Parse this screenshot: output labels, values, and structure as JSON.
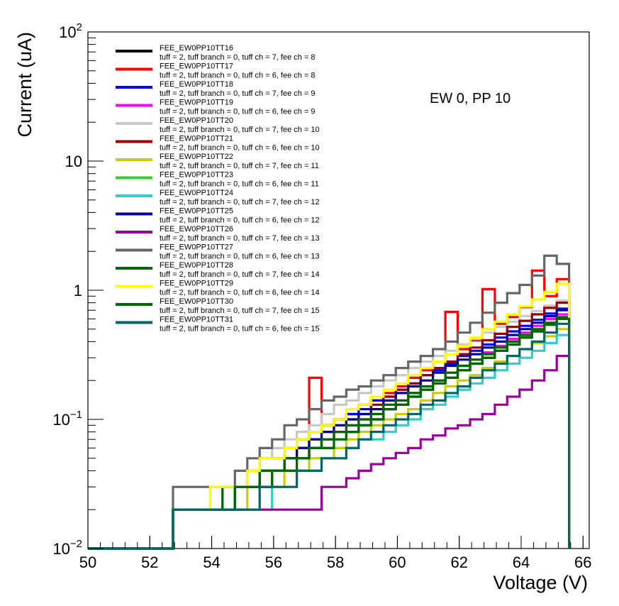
{
  "chart_data": {
    "type": "line",
    "style": "step-histogram",
    "xlabel": "Voltage (V)",
    "ylabel": "Current (uA)",
    "xlim": [
      50,
      66.2
    ],
    "ylim": [
      0.01,
      100
    ],
    "yscale": "log",
    "grid": false,
    "legend_position": "top-left",
    "annotation": "EW 0, PP 10",
    "x_ticks": [
      50,
      52,
      54,
      56,
      58,
      60,
      62,
      64,
      66
    ],
    "y_ticks": [
      {
        "value": 0.01,
        "base": "10",
        "exp": "−2"
      },
      {
        "value": 0.1,
        "base": "10",
        "exp": "−1"
      },
      {
        "value": 1,
        "base": "1",
        "exp": ""
      },
      {
        "value": 10,
        "base": "10",
        "exp": ""
      },
      {
        "value": 100,
        "base": "10",
        "exp": "2"
      }
    ],
    "bin_edges": [
      50.0,
      52.75,
      53.15,
      53.55,
      53.95,
      54.35,
      54.75,
      55.15,
      55.55,
      55.95,
      56.35,
      56.75,
      57.15,
      57.55,
      57.95,
      58.35,
      58.75,
      59.15,
      59.55,
      59.95,
      60.35,
      60.75,
      61.15,
      61.55,
      61.95,
      62.35,
      62.75,
      63.15,
      63.55,
      63.95,
      64.35,
      64.75,
      65.15,
      65.55
    ],
    "series": [
      {
        "name": "FEE_EW0PP10TT16",
        "desc": "tuff = 2, tuff branch = 0, tuff ch = 7, fee ch = 8",
        "color": "#000000",
        "values": [
          0.01,
          0.02,
          0.02,
          0.02,
          0.02,
          0.02,
          0.03,
          0.03,
          0.03,
          0.04,
          0.05,
          0.05,
          0.06,
          0.07,
          0.08,
          0.08,
          0.09,
          0.1,
          0.12,
          0.13,
          0.15,
          0.17,
          0.19,
          0.21,
          0.24,
          0.27,
          0.3,
          0.34,
          0.38,
          0.43,
          0.48,
          0.55,
          0.6
        ]
      },
      {
        "name": "FEE_EW0PP10TT17",
        "desc": "tuff = 2, tuff branch = 0, tuff ch = 6, fee ch = 8",
        "color": "#ff0000",
        "values": [
          0.01,
          0.02,
          0.02,
          0.02,
          0.02,
          0.02,
          0.03,
          0.03,
          0.03,
          0.04,
          0.05,
          0.06,
          0.21,
          0.09,
          0.1,
          0.11,
          0.13,
          0.14,
          0.16,
          0.18,
          0.21,
          0.24,
          0.28,
          0.68,
          0.35,
          0.41,
          1.02,
          0.55,
          0.62,
          0.74,
          1.42,
          0.9,
          1.22
        ]
      },
      {
        "name": "FEE_EW0PP10TT18",
        "desc": "tuff = 2, tuff branch = 0, tuff ch = 7, fee ch = 9",
        "color": "#0000ff",
        "values": [
          0.01,
          0.02,
          0.02,
          0.02,
          0.02,
          0.03,
          0.03,
          0.04,
          0.05,
          0.05,
          0.06,
          0.07,
          0.08,
          0.09,
          0.1,
          0.11,
          0.12,
          0.14,
          0.15,
          0.17,
          0.19,
          0.22,
          0.24,
          0.27,
          0.31,
          0.34,
          0.38,
          0.43,
          0.48,
          0.53,
          0.59,
          0.66,
          0.72
        ]
      },
      {
        "name": "FEE_EW0PP10TT19",
        "desc": "tuff = 2, tuff branch = 0, tuff ch = 6, fee ch = 9",
        "color": "#ff00ff",
        "values": [
          0.01,
          0.02,
          0.02,
          0.02,
          0.02,
          0.02,
          0.03,
          0.03,
          0.04,
          0.04,
          0.05,
          0.05,
          0.06,
          0.07,
          0.08,
          0.09,
          0.1,
          0.11,
          0.12,
          0.14,
          0.16,
          0.18,
          0.2,
          0.23,
          0.26,
          0.29,
          0.33,
          0.37,
          0.42,
          0.47,
          0.53,
          0.6,
          0.65
        ]
      },
      {
        "name": "FEE_EW0PP10TT20",
        "desc": "tuff = 2, tuff branch = 0, tuff ch = 7, fee ch = 10",
        "color": "#c8c8c8",
        "values": [
          0.01,
          0.02,
          0.02,
          0.02,
          0.02,
          0.03,
          0.03,
          0.04,
          0.05,
          0.06,
          0.07,
          0.08,
          0.09,
          0.11,
          0.13,
          0.14,
          0.16,
          0.18,
          0.2,
          0.22,
          0.25,
          0.28,
          0.31,
          0.34,
          0.38,
          0.42,
          0.47,
          0.52,
          0.57,
          0.63,
          0.69,
          0.76,
          0.83
        ]
      },
      {
        "name": "FEE_EW0PP10TT21",
        "desc": "tuff = 2, tuff branch = 0, tuff ch = 6, fee ch = 10",
        "color": "#990000",
        "values": [
          0.01,
          0.02,
          0.02,
          0.02,
          0.02,
          0.02,
          0.03,
          0.03,
          0.04,
          0.04,
          0.05,
          0.06,
          0.07,
          0.08,
          0.09,
          0.1,
          0.11,
          0.13,
          0.15,
          0.17,
          0.19,
          0.22,
          0.25,
          0.28,
          0.32,
          0.36,
          0.41,
          0.46,
          0.52,
          0.58,
          0.65,
          0.73,
          0.8
        ]
      },
      {
        "name": "FEE_EW0PP10TT22",
        "desc": "tuff = 2, tuff branch = 0, tuff ch = 7, fee ch = 11",
        "color": "#cccc00",
        "values": [
          0.01,
          0.02,
          0.02,
          0.02,
          0.02,
          0.02,
          0.02,
          0.03,
          0.03,
          0.03,
          0.04,
          0.04,
          0.05,
          0.05,
          0.06,
          0.07,
          0.08,
          0.09,
          0.1,
          0.11,
          0.12,
          0.14,
          0.16,
          0.18,
          0.2,
          0.22,
          0.25,
          0.28,
          0.31,
          0.35,
          0.39,
          0.44,
          0.5
        ]
      },
      {
        "name": "FEE_EW0PP10TT23",
        "desc": "tuff = 2, tuff branch = 0, tuff ch = 6, fee ch = 11",
        "color": "#33cc33",
        "values": [
          0.01,
          0.02,
          0.02,
          0.02,
          0.02,
          0.02,
          0.03,
          0.03,
          0.03,
          0.04,
          0.04,
          0.05,
          0.06,
          0.06,
          0.07,
          0.08,
          0.09,
          0.1,
          0.12,
          0.13,
          0.15,
          0.17,
          0.19,
          0.21,
          0.24,
          0.27,
          0.3,
          0.34,
          0.38,
          0.43,
          0.48,
          0.54,
          0.6
        ]
      },
      {
        "name": "FEE_EW0PP10TT24",
        "desc": "tuff = 2, tuff branch = 0, tuff ch = 7, fee ch = 12",
        "color": "#33cccc",
        "values": [
          0.01,
          0.02,
          0.02,
          0.02,
          0.02,
          0.02,
          0.02,
          0.02,
          0.02,
          0.03,
          0.03,
          0.04,
          0.04,
          0.05,
          0.05,
          0.06,
          0.07,
          0.07,
          0.08,
          0.09,
          0.1,
          0.12,
          0.13,
          0.15,
          0.17,
          0.19,
          0.21,
          0.24,
          0.27,
          0.3,
          0.34,
          0.39,
          0.45
        ]
      },
      {
        "name": "FEE_EW0PP10TT25",
        "desc": "tuff = 2, tuff branch = 0, tuff ch = 6, fee ch = 12",
        "color": "#000099",
        "values": [
          0.01,
          0.02,
          0.02,
          0.02,
          0.02,
          0.02,
          0.03,
          0.03,
          0.04,
          0.04,
          0.05,
          0.06,
          0.07,
          0.08,
          0.09,
          0.1,
          0.11,
          0.12,
          0.14,
          0.16,
          0.18,
          0.2,
          0.23,
          0.26,
          0.29,
          0.32,
          0.36,
          0.4,
          0.45,
          0.5,
          0.56,
          0.63,
          0.7
        ]
      },
      {
        "name": "FEE_EW0PP10TT26",
        "desc": "tuff = 2, tuff branch = 0, tuff ch = 7, fee ch = 13",
        "color": "#990099",
        "values": [
          0.01,
          0.02,
          0.02,
          0.02,
          0.02,
          0.02,
          0.02,
          0.02,
          0.02,
          0.02,
          0.02,
          0.02,
          0.02,
          0.03,
          0.03,
          0.035,
          0.04,
          0.045,
          0.05,
          0.055,
          0.06,
          0.07,
          0.075,
          0.085,
          0.09,
          0.1,
          0.11,
          0.13,
          0.15,
          0.17,
          0.2,
          0.24,
          0.31
        ]
      },
      {
        "name": "FEE_EW0PP10TT27",
        "desc": "tuff = 2, tuff branch = 0, tuff ch = 6, fee ch = 13",
        "color": "#666666",
        "values": [
          0.01,
          0.03,
          0.03,
          0.03,
          0.03,
          0.03,
          0.04,
          0.05,
          0.06,
          0.07,
          0.09,
          0.1,
          0.12,
          0.14,
          0.15,
          0.17,
          0.18,
          0.2,
          0.22,
          0.25,
          0.28,
          0.31,
          0.35,
          0.4,
          0.47,
          0.56,
          0.67,
          0.8,
          0.95,
          1.1,
          1.3,
          1.85,
          1.6
        ]
      },
      {
        "name": "FEE_EW0PP10TT28",
        "desc": "tuff = 2, tuff branch = 0, tuff ch = 7, fee ch = 14",
        "color": "#006600",
        "values": [
          0.01,
          0.02,
          0.02,
          0.02,
          0.02,
          0.03,
          0.03,
          0.03,
          0.04,
          0.04,
          0.05,
          0.05,
          0.06,
          0.07,
          0.08,
          0.09,
          0.1,
          0.11,
          0.13,
          0.14,
          0.16,
          0.18,
          0.2,
          0.23,
          0.26,
          0.29,
          0.32,
          0.36,
          0.4,
          0.45,
          0.5,
          0.56,
          0.62
        ]
      },
      {
        "name": "FEE_EW0PP10TT29",
        "desc": "tuff = 2, tuff branch = 0, tuff ch = 6, fee ch = 14",
        "color": "#ffff00",
        "values": [
          0.01,
          0.02,
          0.02,
          0.02,
          0.03,
          0.03,
          0.03,
          0.04,
          0.05,
          0.05,
          0.06,
          0.07,
          0.08,
          0.09,
          0.1,
          0.12,
          0.13,
          0.15,
          0.17,
          0.19,
          0.22,
          0.25,
          0.28,
          0.32,
          0.37,
          0.43,
          0.5,
          0.57,
          0.65,
          0.75,
          0.85,
          0.97,
          1.12
        ]
      },
      {
        "name": "FEE_EW0PP10TT30",
        "desc": "tuff = 2, tuff branch = 0, tuff ch = 7, fee ch = 15",
        "color": "#006600",
        "values": [
          0.01,
          0.02,
          0.02,
          0.02,
          0.02,
          0.02,
          0.03,
          0.03,
          0.03,
          0.04,
          0.04,
          0.05,
          0.06,
          0.06,
          0.07,
          0.08,
          0.09,
          0.1,
          0.12,
          0.13,
          0.15,
          0.17,
          0.19,
          0.21,
          0.24,
          0.27,
          0.3,
          0.34,
          0.38,
          0.43,
          0.48,
          0.54,
          0.6
        ]
      },
      {
        "name": "FEE_EW0PP10TT31",
        "desc": "tuff = 2, tuff branch = 0, tuff ch = 6, fee ch = 15",
        "color": "#006666",
        "values": [
          0.01,
          0.02,
          0.02,
          0.02,
          0.02,
          0.02,
          0.02,
          0.02,
          0.03,
          0.03,
          0.03,
          0.04,
          0.04,
          0.05,
          0.05,
          0.06,
          0.07,
          0.08,
          0.09,
          0.1,
          0.11,
          0.13,
          0.14,
          0.16,
          0.18,
          0.21,
          0.24,
          0.27,
          0.31,
          0.35,
          0.4,
          0.47,
          0.55
        ]
      }
    ]
  }
}
